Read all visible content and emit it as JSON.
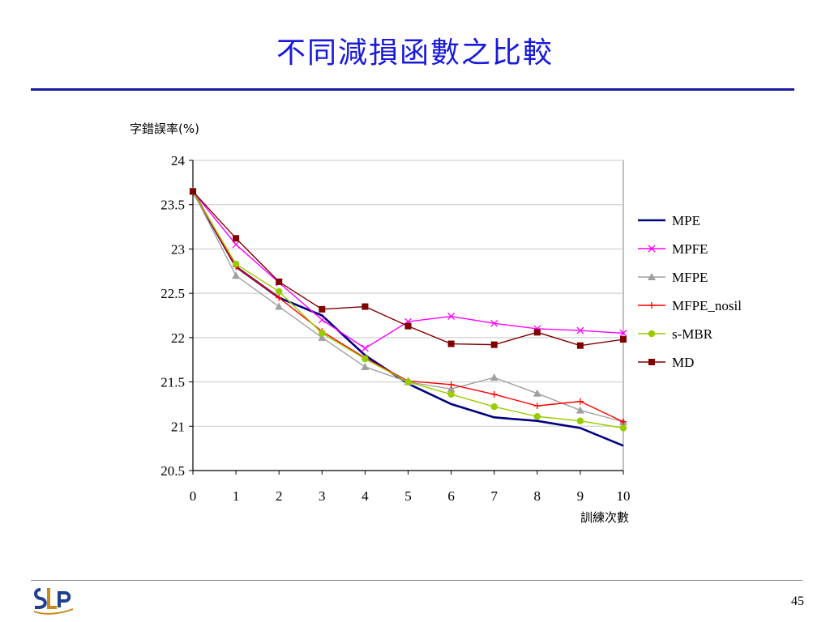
{
  "slide": {
    "title": "不同減損函數之比較",
    "page_number": "45",
    "logo_text": "SLP"
  },
  "chart_data": {
    "type": "line",
    "ylabel": "字錯誤率(%)",
    "xlabel": "訓練次數",
    "x": [
      0,
      1,
      2,
      3,
      4,
      5,
      6,
      7,
      8,
      9,
      10
    ],
    "xlim": [
      0,
      10
    ],
    "ylim": [
      20.5,
      24
    ],
    "yticks": [
      20.5,
      21,
      21.5,
      22,
      22.5,
      23,
      23.5,
      24
    ],
    "grid": true,
    "legend_position": "right",
    "series": [
      {
        "name": "MPE",
        "color": "#000080",
        "marker": "none",
        "values": [
          23.65,
          22.8,
          22.45,
          22.25,
          21.8,
          21.48,
          21.25,
          21.1,
          21.06,
          20.98,
          20.78
        ]
      },
      {
        "name": "MPFE",
        "color": "#ff00ff",
        "marker": "x",
        "values": [
          23.65,
          23.05,
          22.62,
          22.2,
          21.88,
          22.18,
          22.24,
          22.16,
          22.1,
          22.08,
          22.05
        ]
      },
      {
        "name": "MFPE",
        "color": "#a0a0a0",
        "marker": "triangle",
        "values": [
          23.65,
          22.7,
          22.35,
          22.0,
          21.67,
          21.5,
          21.42,
          21.55,
          21.37,
          21.18,
          21.05
        ]
      },
      {
        "name": "MFPE_nosil",
        "color": "#ff0000",
        "marker": "plus",
        "values": [
          23.65,
          22.8,
          22.45,
          22.07,
          21.77,
          21.51,
          21.47,
          21.36,
          21.23,
          21.28,
          21.05
        ]
      },
      {
        "name": "s-MBR",
        "color": "#99cc00",
        "marker": "circle",
        "values": [
          23.65,
          22.83,
          22.52,
          22.05,
          21.76,
          21.5,
          21.36,
          21.22,
          21.11,
          21.06,
          20.98
        ]
      },
      {
        "name": "MD",
        "color": "#800000",
        "marker": "square",
        "values": [
          23.65,
          23.12,
          22.63,
          22.32,
          22.35,
          22.13,
          21.93,
          21.92,
          22.06,
          21.91,
          21.98
        ]
      }
    ]
  }
}
